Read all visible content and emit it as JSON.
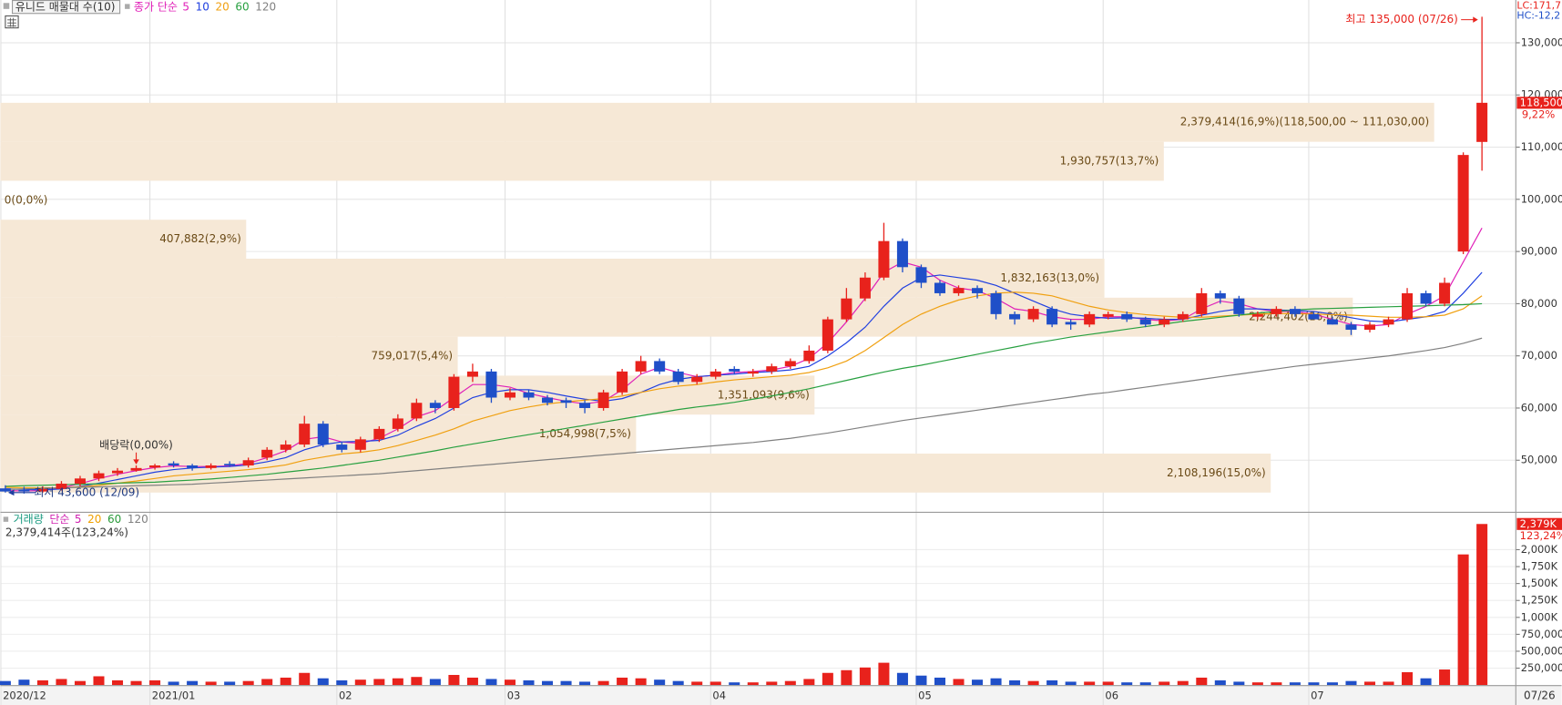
{
  "chart_data": [
    {
      "type": "candlestick",
      "legend_title": "유니드 매물대 수(10)",
      "ma_label": "종가 단순",
      "categories": [
        "2020/12",
        null,
        null,
        null,
        null,
        null,
        null,
        null,
        "2021/01",
        null,
        null,
        null,
        null,
        null,
        null,
        null,
        null,
        null,
        "02",
        null,
        null,
        null,
        null,
        null,
        null,
        null,
        null,
        "03",
        null,
        null,
        null,
        null,
        null,
        null,
        null,
        null,
        null,
        null,
        "04",
        null,
        null,
        null,
        null,
        null,
        null,
        null,
        null,
        null,
        null,
        "05",
        null,
        null,
        null,
        null,
        null,
        null,
        null,
        null,
        null,
        "06",
        null,
        null,
        null,
        null,
        null,
        null,
        null,
        null,
        null,
        null,
        "07",
        null,
        null,
        null,
        null,
        null,
        null,
        null,
        null,
        null
      ],
      "open": [
        44600,
        44300,
        44000,
        44500,
        45500,
        46500,
        47500,
        48000,
        48600,
        49400,
        49000,
        48500,
        49300,
        49000,
        50500,
        52000,
        53000,
        57000,
        53000,
        52000,
        54000,
        56000,
        58000,
        61000,
        60000,
        66000,
        67000,
        62000,
        63000,
        62000,
        61500,
        61000,
        60000,
        63000,
        67000,
        69000,
        67000,
        65000,
        66000,
        67500,
        66600,
        67000,
        68000,
        69000,
        71000,
        77000,
        81000,
        85000,
        92000,
        87000,
        84000,
        82000,
        83000,
        82000,
        78000,
        77000,
        79000,
        76500,
        76000,
        77500,
        78000,
        77000,
        76000,
        77000,
        78000,
        82000,
        81000,
        77500,
        78000,
        79000,
        78000,
        77000,
        76000,
        75000,
        76000,
        77000,
        82000,
        80000,
        90000,
        111000
      ],
      "high": [
        45200,
        44900,
        45000,
        46000,
        47000,
        48000,
        48500,
        49000,
        49300,
        49800,
        49300,
        49400,
        49800,
        50500,
        52500,
        53800,
        58500,
        57500,
        53500,
        54500,
        56500,
        58800,
        61800,
        61500,
        66500,
        68500,
        67500,
        63800,
        63500,
        62500,
        62000,
        61500,
        63500,
        67500,
        70000,
        69500,
        67500,
        66500,
        67500,
        68000,
        67500,
        68500,
        69500,
        72000,
        77500,
        83000,
        86000,
        95500,
        92500,
        87500,
        84500,
        83500,
        83500,
        82500,
        78500,
        79500,
        79500,
        77000,
        78500,
        78500,
        78500,
        77500,
        77500,
        78500,
        83000,
        82500,
        81500,
        78500,
        79500,
        79500,
        78500,
        77500,
        76500,
        76500,
        77500,
        83000,
        82500,
        85000,
        109000,
        135000
      ],
      "low": [
        43800,
        43600,
        43800,
        44200,
        45000,
        46000,
        47000,
        47800,
        48200,
        48600,
        48000,
        48200,
        48700,
        48600,
        50000,
        51500,
        52500,
        52500,
        51500,
        51500,
        53500,
        55500,
        57500,
        59000,
        59500,
        65000,
        61000,
        61500,
        61500,
        60500,
        60000,
        59000,
        59500,
        62500,
        66500,
        66500,
        64500,
        64500,
        65500,
        66500,
        66000,
        66500,
        67500,
        68500,
        70500,
        76500,
        80500,
        84500,
        86000,
        83000,
        81500,
        81500,
        81000,
        77000,
        76000,
        76500,
        75500,
        75000,
        75500,
        77000,
        76500,
        75500,
        75500,
        76500,
        77500,
        80000,
        77500,
        77000,
        77500,
        77500,
        77000,
        76000,
        74000,
        74500,
        75500,
        76500,
        79500,
        79500,
        89500,
        105500
      ],
      "close": [
        44000,
        44000,
        44500,
        45500,
        46500,
        47500,
        48000,
        48500,
        49000,
        49000,
        48500,
        49000,
        49000,
        50000,
        52000,
        53000,
        57000,
        53000,
        52000,
        54000,
        56000,
        58000,
        61000,
        60000,
        66000,
        67000,
        62000,
        63000,
        62000,
        61000,
        61000,
        60000,
        63000,
        67000,
        69000,
        67000,
        65000,
        66000,
        67000,
        67000,
        67000,
        68000,
        69000,
        71000,
        77000,
        81000,
        85000,
        92000,
        87000,
        84000,
        82000,
        83000,
        82000,
        78000,
        77000,
        79000,
        76000,
        76000,
        78000,
        78000,
        77000,
        76000,
        77000,
        78000,
        82000,
        81000,
        78000,
        78000,
        79000,
        78000,
        77000,
        76000,
        75000,
        76000,
        77000,
        82000,
        80000,
        84000,
        108500,
        118500
      ],
      "series": [
        {
          "name": "5",
          "color": "#e020b8",
          "values": [
            44200,
            44100,
            44200,
            44700,
            45500,
            46500,
            47300,
            48000,
            48600,
            48900,
            48800,
            48800,
            48900,
            49400,
            50500,
            51800,
            54000,
            54500,
            53500,
            53200,
            54200,
            56000,
            58300,
            59500,
            62000,
            64500,
            64500,
            64000,
            62800,
            62000,
            61300,
            60800,
            61300,
            63500,
            66500,
            67800,
            66800,
            66000,
            66300,
            66800,
            67000,
            67300,
            68000,
            69500,
            72500,
            76500,
            81000,
            86000,
            88000,
            87000,
            84500,
            83000,
            82500,
            81000,
            79000,
            78500,
            77500,
            77000,
            77000,
            77500,
            77500,
            77000,
            76700,
            77000,
            79000,
            80500,
            80000,
            79000,
            78500,
            78500,
            78000,
            77000,
            76000,
            75700,
            76000,
            78000,
            79500,
            81500,
            88000,
            94500
          ]
        },
        {
          "name": "10",
          "color": "#2040e0",
          "values": [
            44500,
            44400,
            44300,
            44500,
            45000,
            45600,
            46300,
            47000,
            47700,
            48200,
            48500,
            48700,
            48800,
            49100,
            49700,
            50500,
            52000,
            53000,
            53500,
            53600,
            53800,
            54800,
            56500,
            58000,
            60000,
            62000,
            63000,
            63500,
            63500,
            63000,
            62300,
            61700,
            61300,
            61800,
            63000,
            64500,
            65500,
            66000,
            66300,
            66500,
            66800,
            67000,
            67300,
            68000,
            70000,
            72500,
            75500,
            79500,
            83000,
            85000,
            85500,
            85000,
            84500,
            83500,
            82000,
            80500,
            79000,
            78000,
            77500,
            77200,
            77300,
            77200,
            77000,
            77000,
            77800,
            78500,
            79000,
            79000,
            78800,
            78700,
            78500,
            78000,
            77300,
            76700,
            76500,
            77000,
            77500,
            78500,
            82000,
            86000
          ]
        },
        {
          "name": "20",
          "color": "#f0a010",
          "values": [
            44800,
            44700,
            44700,
            44700,
            44900,
            45200,
            45600,
            46000,
            46500,
            47000,
            47300,
            47600,
            47900,
            48200,
            48600,
            49100,
            50000,
            50600,
            51200,
            51500,
            52000,
            52800,
            53800,
            54800,
            56000,
            57500,
            58500,
            59500,
            60200,
            60800,
            61200,
            61500,
            61800,
            62300,
            63000,
            63700,
            64200,
            64500,
            65000,
            65400,
            65700,
            66000,
            66300,
            66800,
            67700,
            69000,
            71000,
            73500,
            76000,
            78000,
            79500,
            80700,
            81500,
            82000,
            82200,
            82000,
            81500,
            80500,
            79500,
            78800,
            78300,
            77900,
            77600,
            77400,
            77400,
            77600,
            77800,
            78000,
            78100,
            78100,
            78000,
            77900,
            77800,
            77600,
            77400,
            77400,
            77500,
            77800,
            79000,
            81500
          ]
        },
        {
          "name": "60",
          "color": "#28a040",
          "values": [
            45000,
            45100,
            45200,
            45300,
            45400,
            45500,
            45600,
            45700,
            45800,
            46000,
            46200,
            46400,
            46700,
            47000,
            47300,
            47700,
            48100,
            48500,
            49000,
            49500,
            50000,
            50600,
            51200,
            51800,
            52500,
            53100,
            53700,
            54300,
            54900,
            55500,
            56100,
            56700,
            57300,
            57900,
            58500,
            59100,
            59700,
            60200,
            60600,
            61100,
            61700,
            62300,
            63000,
            63700,
            64500,
            65300,
            66100,
            66900,
            67600,
            68200,
            68900,
            69600,
            70300,
            71000,
            71700,
            72400,
            73000,
            73600,
            74100,
            74600,
            75100,
            75600,
            76100,
            76600,
            77000,
            77400,
            77800,
            78200,
            78500,
            78800,
            79000,
            79100,
            79200,
            79300,
            79400,
            79500,
            79600,
            79700,
            79800,
            80000
          ]
        },
        {
          "name": "120",
          "color": "#808080",
          "values": [
            44400,
            44500,
            44600,
            44700,
            44800,
            44900,
            45000,
            45100,
            45200,
            45300,
            45400,
            45600,
            45800,
            46000,
            46200,
            46400,
            46600,
            46800,
            47000,
            47200,
            47400,
            47700,
            48000,
            48300,
            48600,
            48900,
            49200,
            49500,
            49800,
            50100,
            50400,
            50700,
            51000,
            51300,
            51600,
            51900,
            52200,
            52500,
            52800,
            53100,
            53400,
            53800,
            54200,
            54700,
            55200,
            55800,
            56400,
            57000,
            57600,
            58100,
            58600,
            59100,
            59600,
            60100,
            60600,
            61100,
            61600,
            62100,
            62600,
            63000,
            63500,
            64000,
            64500,
            65000,
            65500,
            66000,
            66500,
            67000,
            67500,
            68000,
            68400,
            68800,
            69200,
            69600,
            70000,
            70500,
            71000,
            71600,
            72400,
            73400
          ]
        }
      ],
      "up_color": "#e8221c",
      "down_color": "#1f4fc8",
      "ylim": [
        40300,
        138200
      ],
      "yticks": [
        {
          "value": 50000,
          "label": "50,000"
        },
        {
          "value": 60000,
          "label": "60,000"
        },
        {
          "value": 70000,
          "label": "70,000"
        },
        {
          "value": 80000,
          "label": "80,000"
        },
        {
          "value": 90000,
          "label": "90,000"
        },
        {
          "value": 100000,
          "label": "100,000"
        },
        {
          "value": 110000,
          "label": "110,000"
        },
        {
          "value": 120000,
          "label": "120,000"
        },
        {
          "value": 130000,
          "label": "130,000"
        }
      ],
      "grid": true,
      "volume_profile": {
        "color": "#f6e8d6",
        "labels": [
          "2,379,414(16,9%)(118,500,00 ~ 111,030,00)",
          "1,930,757(13,7%)",
          "0(0,0%)",
          "407,882(2,9%)",
          "1,832,163(13,0%)",
          "2,244,402(16,0%)",
          "759,017(5,4%)",
          "1,351,093(9,6%)",
          "1,054,998(7,5%)",
          "2,108,196(15,0%)"
        ],
        "values": [
          2379414,
          1930757,
          0,
          407882,
          1832163,
          2244402,
          759017,
          1351093,
          1054998,
          2108196
        ],
        "ranges": [
          [
            111030,
            118500
          ],
          [
            103560,
            111030
          ],
          [
            96090,
            103560
          ],
          [
            88620,
            96090
          ],
          [
            81150,
            88620
          ],
          [
            73680,
            81150
          ],
          [
            66210,
            73680
          ],
          [
            58740,
            66210
          ],
          [
            51270,
            58740
          ],
          [
            43800,
            51270
          ]
        ]
      },
      "annotations": {
        "high": "최고 135,000 (07/26)",
        "low": "최저 43,600 (12/09)",
        "ex_dividend": "배당락(0,00%)"
      },
      "last_price": {
        "value": 118500,
        "label": "118,500"
      },
      "change": "9,22%",
      "lc": "LC:171,7",
      "hc": "HC:-12,2",
      "last_date": "07/26"
    },
    {
      "type": "bar",
      "title": "거래량",
      "title_color": "#1a9a80",
      "ma_label": "단순",
      "ma_legend": [
        {
          "name": "5",
          "color": "#d020b0"
        },
        {
          "name": "20",
          "color": "#f0a000"
        },
        {
          "name": "60",
          "color": "#2a9a3a"
        },
        {
          "name": "120",
          "color": "#808080"
        }
      ],
      "info": "2,379,414주(123,24%)",
      "values": [
        60000,
        80000,
        70000,
        90000,
        60000,
        130000,
        70000,
        60000,
        70000,
        50000,
        60000,
        50000,
        50000,
        60000,
        90000,
        110000,
        180000,
        100000,
        70000,
        80000,
        90000,
        100000,
        120000,
        90000,
        150000,
        110000,
        90000,
        80000,
        70000,
        60000,
        60000,
        50000,
        60000,
        110000,
        100000,
        80000,
        60000,
        50000,
        50000,
        40000,
        40000,
        50000,
        60000,
        90000,
        180000,
        220000,
        260000,
        330000,
        180000,
        140000,
        110000,
        90000,
        80000,
        100000,
        70000,
        60000,
        70000,
        50000,
        50000,
        50000,
        40000,
        40000,
        50000,
        60000,
        110000,
        70000,
        50000,
        40000,
        40000,
        40000,
        40000,
        40000,
        60000,
        50000,
        50000,
        190000,
        100000,
        230000,
        1930000,
        2379414
      ],
      "ylim": [
        0,
        2515000
      ],
      "yticks": [
        {
          "value": 250000,
          "label": "250,000"
        },
        {
          "value": 500000,
          "label": "500,000"
        },
        {
          "value": 750000,
          "label": "750,000"
        },
        {
          "value": 1000000,
          "label": "1,000K"
        },
        {
          "value": 1250000,
          "label": "1,250K"
        },
        {
          "value": 1500000,
          "label": "1,500K"
        },
        {
          "value": 1750000,
          "label": "1,750K"
        },
        {
          "value": 2000000,
          "label": "2,000K"
        }
      ],
      "last_value": {
        "value": 2379414,
        "label": "2,379K"
      },
      "change": "123,24%"
    }
  ]
}
